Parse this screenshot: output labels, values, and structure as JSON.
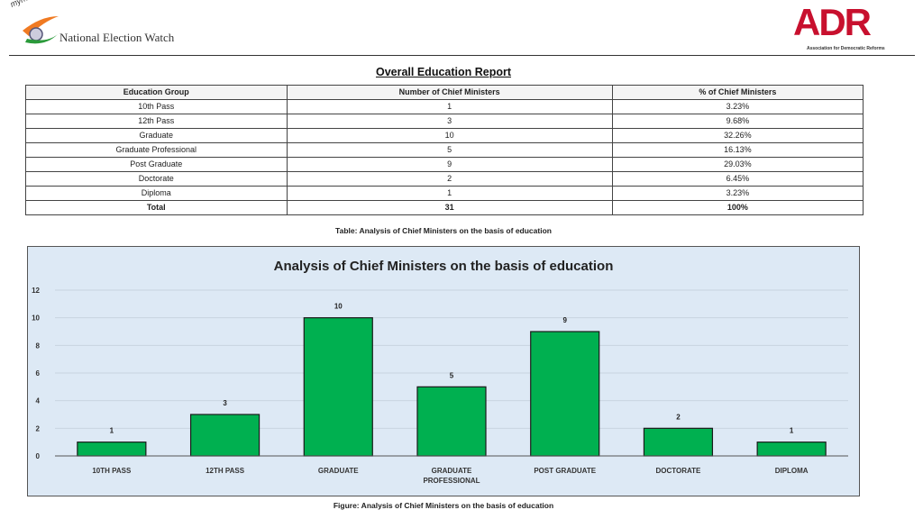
{
  "header": {
    "left_logo_tag": "myneta.info",
    "left_logo_text": "National Election Watch",
    "right_logo": "ADR",
    "right_logo_sub": "Association for Democratic Reforms"
  },
  "report_title": "Overall Education Report",
  "table": {
    "headers": [
      "Education Group",
      "Number of Chief Ministers",
      "% of Chief Ministers"
    ],
    "rows": [
      [
        "10th Pass",
        "1",
        "3.23%"
      ],
      [
        "12th Pass",
        "3",
        "9.68%"
      ],
      [
        "Graduate",
        "10",
        "32.26%"
      ],
      [
        "Graduate Professional",
        "5",
        "16.13%"
      ],
      [
        "Post Graduate",
        "9",
        "29.03%"
      ],
      [
        "Doctorate",
        "2",
        "6.45%"
      ],
      [
        "Diploma",
        "1",
        "3.23%"
      ]
    ],
    "total": [
      "Total",
      "31",
      "100%"
    ]
  },
  "table_caption": "Table: Analysis of Chief Ministers on the basis of education",
  "figure_caption": "Figure: Analysis of Chief Ministers on the basis of education",
  "colors": {
    "bar": "#00b050",
    "bg": "#dde9f5"
  },
  "chart_data": {
    "type": "bar",
    "title": "Analysis of Chief Ministers on the basis of education",
    "categories": [
      "10TH PASS",
      "12TH PASS",
      "GRADUATE",
      "GRADUATE PROFESSIONAL",
      "POST GRADUATE",
      "DOCTORATE",
      "DIPLOMA"
    ],
    "values": [
      1,
      3,
      10,
      5,
      9,
      2,
      1
    ],
    "ylim": [
      0,
      12
    ],
    "yticks": [
      0,
      2,
      4,
      6,
      8,
      10,
      12
    ],
    "xlabel": "",
    "ylabel": "",
    "grid": true,
    "legend": "none"
  }
}
